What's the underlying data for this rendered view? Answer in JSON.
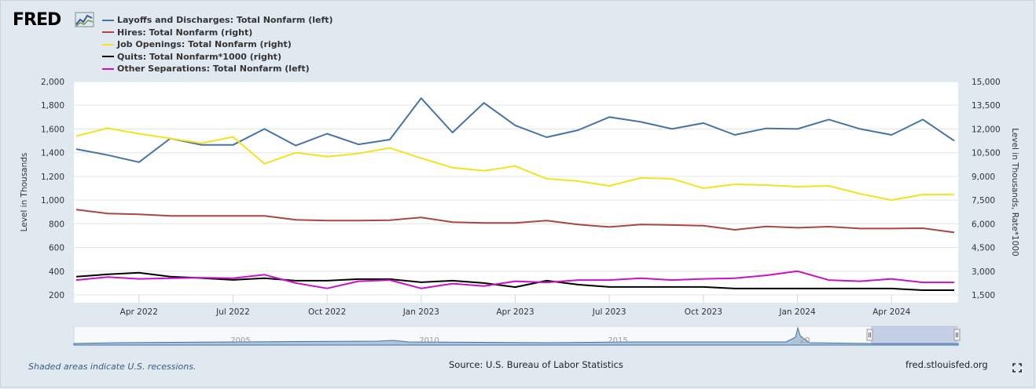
{
  "brand": {
    "logo_text": "FRED",
    "logo_mark_icon": "fred-line-graph-icon"
  },
  "footer": {
    "recession_note": "Shaded areas indicate U.S. recessions.",
    "source": "Source: U.S. Bureau of Labor Statistics",
    "site": "fred.stlouisfed.org",
    "fullscreen_icon": "fullscreen-icon"
  },
  "navigator": {
    "years": [
      "2005",
      "2010",
      "2015",
      "20"
    ]
  },
  "chart_data": {
    "type": "line",
    "xlabel": "",
    "ylabel_left": "Level in Thousands",
    "ylabel_right": "Level in Thousands, Rate*1000",
    "ylim_left": [
      200,
      2000
    ],
    "ylim_right": [
      1500,
      15000
    ],
    "yticks_left": [
      "2,000",
      "1,800",
      "1,600",
      "1,400",
      "1,200",
      "1,000",
      "800",
      "600",
      "400",
      "200"
    ],
    "yticks_right": [
      "15,000",
      "13,500",
      "12,000",
      "10,500",
      "9,000",
      "7,500",
      "6,000",
      "4,500",
      "3,000",
      "1,500"
    ],
    "x": [
      "2022-02",
      "2022-03",
      "2022-04",
      "2022-05",
      "2022-06",
      "2022-07",
      "2022-08",
      "2022-09",
      "2022-10",
      "2022-11",
      "2022-12",
      "2023-01",
      "2023-02",
      "2023-03",
      "2023-04",
      "2023-05",
      "2023-06",
      "2023-07",
      "2023-08",
      "2023-09",
      "2023-10",
      "2023-11",
      "2023-12",
      "2024-01",
      "2024-02",
      "2024-03",
      "2024-04",
      "2024-05",
      "2024-06"
    ],
    "x_tick_labels": [
      "Apr 2022",
      "Jul 2022",
      "Oct 2022",
      "Jan 2023",
      "Apr 2023",
      "Jul 2023",
      "Oct 2023",
      "Jan 2024",
      "Apr 2024"
    ],
    "x_tick_dates": [
      "2022-04",
      "2022-07",
      "2022-10",
      "2023-01",
      "2023-04",
      "2023-07",
      "2023-10",
      "2024-01",
      "2024-04"
    ],
    "grid": true,
    "legend_position": "top-left",
    "series": [
      {
        "name": "Layoffs and Discharges: Total Nonfarm (left)",
        "axis": "left",
        "color": "#4572a7",
        "values": [
          1430,
          1380,
          1320,
          1520,
          1465,
          1465,
          1600,
          1460,
          1560,
          1470,
          1510,
          1860,
          1570,
          1820,
          1630,
          1530,
          1590,
          1700,
          1660,
          1600,
          1650,
          1550,
          1605,
          1600,
          1680,
          1600,
          1550,
          1680,
          1500
        ]
      },
      {
        "name": "Hires: Total Nonfarm (right)",
        "axis": "right",
        "color": "#aa4643",
        "values": [
          6900,
          6650,
          6600,
          6500,
          6500,
          6500,
          6500,
          6250,
          6200,
          6200,
          6230,
          6400,
          6100,
          6050,
          6050,
          6200,
          5950,
          5800,
          5950,
          5920,
          5880,
          5620,
          5830,
          5750,
          5820,
          5700,
          5700,
          5720,
          5450
        ]
      },
      {
        "name": "Job Openings: Total Nonfarm (right)",
        "axis": "right",
        "color": "#f4e21e",
        "values": [
          11550,
          12050,
          11700,
          11400,
          11100,
          11500,
          9800,
          10500,
          10250,
          10450,
          10800,
          10150,
          9550,
          9350,
          9650,
          8850,
          8700,
          8400,
          8900,
          8850,
          8250,
          8500,
          8450,
          8350,
          8400,
          7900,
          7500,
          7850,
          7850
        ]
      },
      {
        "name": "Quits: Total Nonfarm*1000 (right)",
        "axis": "right",
        "color": "#000000",
        "values": [
          2650,
          2800,
          2900,
          2650,
          2560,
          2450,
          2550,
          2400,
          2400,
          2500,
          2500,
          2300,
          2400,
          2250,
          1990,
          2400,
          2150,
          2000,
          2000,
          2000,
          2000,
          1900,
          1900,
          1900,
          1900,
          1900,
          1900,
          1800,
          1800
        ]
      },
      {
        "name": "Other Separations: Total Nonfarm (left)",
        "axis": "left",
        "color": "#c911c9",
        "values": [
          325,
          350,
          335,
          340,
          345,
          340,
          370,
          300,
          255,
          315,
          325,
          255,
          295,
          275,
          315,
          305,
          325,
          325,
          340,
          325,
          335,
          340,
          365,
          400,
          325,
          315,
          335,
          305,
          305
        ]
      }
    ]
  }
}
